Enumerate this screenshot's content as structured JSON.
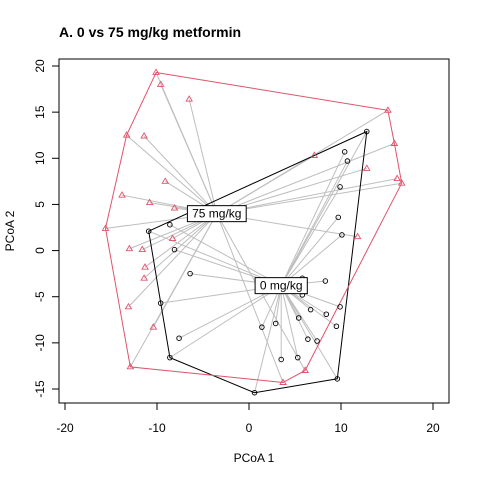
{
  "chart_data": {
    "type": "scatter",
    "title": "A. 0 vs 75 mg/kg metformin",
    "xlabel": "PCoA 1",
    "ylabel": "PCoA 2",
    "xlim": [
      -20,
      20
    ],
    "ylim": [
      -15,
      20
    ],
    "xticks": [
      -20,
      -10,
      0,
      10,
      20
    ],
    "yticks": [
      -15,
      -10,
      -5,
      0,
      5,
      10,
      15,
      20
    ],
    "grid": false,
    "legend": "none",
    "colors": {
      "spider": "#bebebe",
      "group_0": "#000000",
      "group_75": "#df536b"
    },
    "series": [
      {
        "marker": "circle",
        "color": "#000000",
        "centroid": {
          "label": "0 mg/kg",
          "x": 3.5,
          "y": -3.8
        },
        "hull_order": [
          [
            12.8,
            12.9
          ],
          [
            9.6,
            -13.9
          ],
          [
            0.6,
            -15.4
          ],
          [
            -8.6,
            -11.6
          ],
          [
            -10.9,
            2.1
          ]
        ],
        "points": [
          [
            12.8,
            12.9
          ],
          [
            10.4,
            10.7
          ],
          [
            10.7,
            9.7
          ],
          [
            9.9,
            6.9
          ],
          [
            9.7,
            3.6
          ],
          [
            10.1,
            1.7
          ],
          [
            -10.9,
            2.1
          ],
          [
            -8.6,
            2.8
          ],
          [
            -8.1,
            0.1
          ],
          [
            -6.4,
            -2.5
          ],
          [
            -9.6,
            -5.7
          ],
          [
            5.8,
            -3.0
          ],
          [
            8.3,
            -3.3
          ],
          [
            5.8,
            -4.8
          ],
          [
            1.4,
            -8.3
          ],
          [
            2.9,
            -7.9
          ],
          [
            5.4,
            -7.3
          ],
          [
            6.7,
            -6.4
          ],
          [
            8.4,
            -6.9
          ],
          [
            9.9,
            -6.1
          ],
          [
            9.5,
            -8.2
          ],
          [
            -7.6,
            -9.5
          ],
          [
            6.4,
            -9.6
          ],
          [
            7.4,
            -9.8
          ],
          [
            3.5,
            -11.8
          ],
          [
            5.3,
            -11.6
          ],
          [
            -8.6,
            -11.6
          ],
          [
            9.6,
            -13.9
          ],
          [
            0.6,
            -15.4
          ]
        ]
      },
      {
        "marker": "triangle",
        "color": "#df536b",
        "centroid": {
          "label": "75 mg/kg",
          "x": -3.5,
          "y": 4.0
        },
        "hull_order": [
          [
            -10.1,
            19.3
          ],
          [
            15.1,
            15.2
          ],
          [
            15.8,
            11.6
          ],
          [
            16.6,
            7.3
          ],
          [
            6.1,
            -13.0
          ],
          [
            3.7,
            -14.3
          ],
          [
            -12.9,
            -12.6
          ],
          [
            -15.6,
            2.4
          ],
          [
            -13.3,
            12.5
          ]
        ],
        "points": [
          [
            -10.1,
            19.3
          ],
          [
            -9.6,
            18.0
          ],
          [
            -6.5,
            16.4
          ],
          [
            -13.3,
            12.5
          ],
          [
            -11.4,
            12.4
          ],
          [
            15.1,
            15.2
          ],
          [
            15.8,
            11.6
          ],
          [
            7.1,
            10.3
          ],
          [
            12.8,
            8.9
          ],
          [
            16.1,
            7.8
          ],
          [
            16.6,
            7.3
          ],
          [
            -9.1,
            7.5
          ],
          [
            -13.8,
            6.0
          ],
          [
            -10.8,
            5.2
          ],
          [
            -8.1,
            4.6
          ],
          [
            -15.6,
            2.4
          ],
          [
            -13.0,
            0.2
          ],
          [
            -11.6,
            0.1
          ],
          [
            -8.3,
            1.3
          ],
          [
            11.8,
            1.5
          ],
          [
            -11.3,
            -1.8
          ],
          [
            -11.4,
            -3.0
          ],
          [
            -13.1,
            -6.1
          ],
          [
            -10.4,
            -8.3
          ],
          [
            6.1,
            -13.0
          ],
          [
            3.7,
            -14.3
          ],
          [
            -12.9,
            -12.6
          ]
        ]
      }
    ]
  }
}
